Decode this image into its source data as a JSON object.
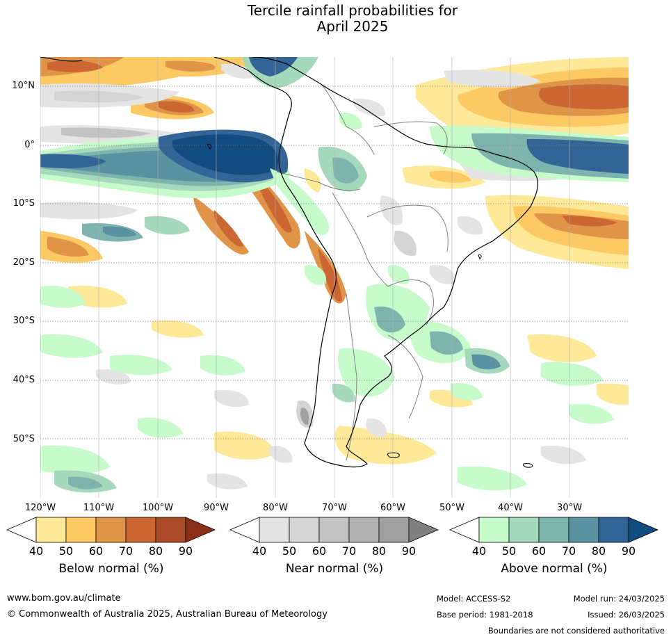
{
  "title_line1": "Tercile rainfall probabilities for",
  "title_line2": "April 2025",
  "map": {
    "lat_labels": [
      "10°N",
      "0°",
      "10°S",
      "20°S",
      "30°S",
      "40°S",
      "50°S"
    ],
    "lon_labels": [
      "120°W",
      "110°W",
      "100°W",
      "90°W",
      "80°W",
      "70°W",
      "60°W",
      "50°W",
      "40°W",
      "30°W"
    ]
  },
  "legend": {
    "below": {
      "title": "Below normal (%)",
      "ticks": [
        "40",
        "50",
        "60",
        "70",
        "80",
        "90"
      ],
      "colors": [
        "#ffffff",
        "#fee998",
        "#fdc964",
        "#e09448",
        "#cc6633",
        "#aa4a26",
        "#8b3018"
      ]
    },
    "near": {
      "title": "Near normal (%)",
      "ticks": [
        "40",
        "50",
        "60",
        "70",
        "80",
        "90"
      ],
      "colors": [
        "#ffffff",
        "#e4e4e4",
        "#d4d4d4",
        "#c3c3c3",
        "#b2b2b2",
        "#a0a0a0",
        "#7f7f7f"
      ]
    },
    "above": {
      "title": "Above normal (%)",
      "ticks": [
        "40",
        "50",
        "60",
        "70",
        "80",
        "90"
      ],
      "colors": [
        "#ffffff",
        "#c8fbcc",
        "#a6d9bb",
        "#7db5ae",
        "#5a92a2",
        "#326596",
        "#124b80"
      ]
    }
  },
  "footer": {
    "website": "www.bom.gov.au/climate",
    "copyright": "© Commonwealth of Australia 2025, Australian Bureau of Meteorology",
    "model": "Model: ACCESS-S2",
    "base_period": "Base period: 1981-2018",
    "model_run": "Model run: 24/03/2025",
    "issued": "Issued: 26/03/2025",
    "disclaimer": "Boundaries are not considered authoritative"
  }
}
